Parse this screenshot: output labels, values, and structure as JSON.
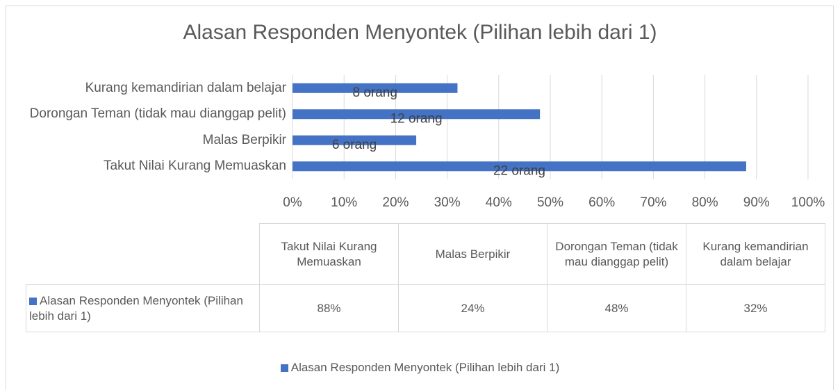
{
  "chart_data": {
    "type": "bar",
    "orientation": "horizontal",
    "title": "Alasan Responden Menyontek (Pilihan lebih dari 1)",
    "categories": [
      "Takut Nilai Kurang Memuaskan",
      "Malas Berpikir",
      "Dorongan Teman (tidak mau dianggap pelit)",
      "Kurang kemandirian dalam belajar"
    ],
    "series": [
      {
        "name": "Alasan Responden Menyontek (Pilihan lebih dari 1)",
        "color": "#4472c4",
        "values": [
          88,
          24,
          48,
          32
        ],
        "value_labels": [
          "88%",
          "24%",
          "48%",
          "32%"
        ],
        "data_labels": [
          "22 orang",
          "6 orang",
          "12 orang",
          "8 orang"
        ]
      }
    ],
    "xlim": [
      0,
      100
    ],
    "xticks": [
      {
        "value": 0,
        "label": "0%"
      },
      {
        "value": 10,
        "label": "10%"
      },
      {
        "value": 20,
        "label": "20%"
      },
      {
        "value": 30,
        "label": "30%"
      },
      {
        "value": 40,
        "label": "40%"
      },
      {
        "value": 50,
        "label": "50%"
      },
      {
        "value": 60,
        "label": "60%"
      },
      {
        "value": 70,
        "label": "70%"
      },
      {
        "value": 80,
        "label": "80%"
      },
      {
        "value": 90,
        "label": "90%"
      },
      {
        "value": 100,
        "label": "100%"
      }
    ],
    "grid": true,
    "legend": "bottom",
    "data_table": true
  }
}
